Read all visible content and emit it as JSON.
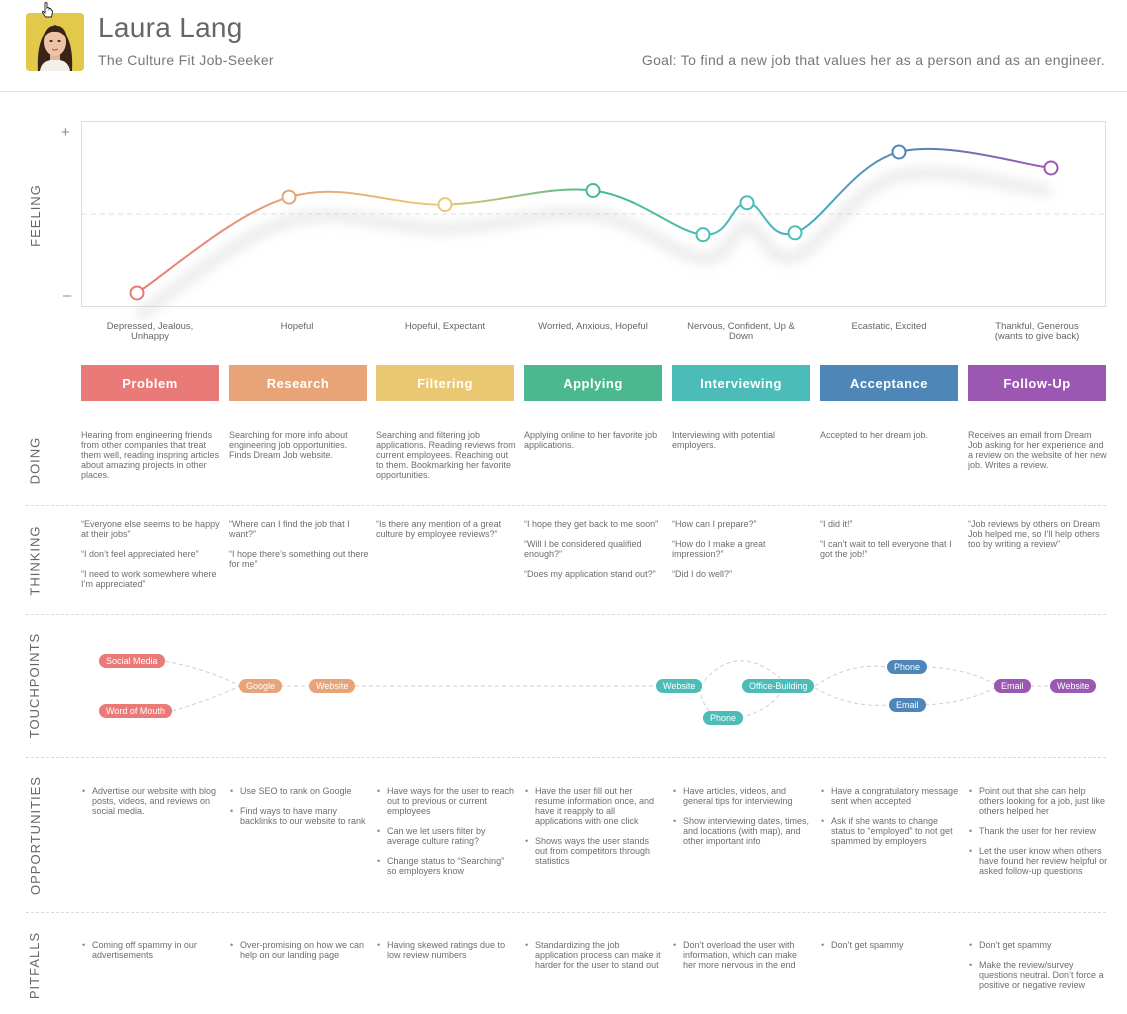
{
  "persona": {
    "name": "Laura Lang",
    "subtitle": "The Culture Fit Job-Seeker",
    "goal": "Goal: To find a new job that values her as a person and as an engineer."
  },
  "rows": {
    "feeling": "FEELING",
    "doing": "DOING",
    "thinking": "THINKING",
    "touchpoints": "TOUCHPOINTS",
    "opportunities": "OPPORTUNITIES",
    "pitfalls": "PITFALLS"
  },
  "chart_data": {
    "type": "line",
    "y_marks": {
      "top": "+",
      "bottom": "–"
    },
    "scale": "feeling from negative (–) to positive (+), midline = neutral",
    "ylim": [
      -1,
      1
    ],
    "points": [
      {
        "stage": "Problem",
        "value": -0.84
      },
      {
        "stage": "Research",
        "value": 0.18
      },
      {
        "stage": "Filtering",
        "value": 0.1
      },
      {
        "stage": "Applying",
        "value": 0.25
      },
      {
        "stage": "Interviewing",
        "value": -0.22
      },
      {
        "stage": "Interviewing",
        "value": 0.12
      },
      {
        "stage": "Interviewing",
        "value": -0.2
      },
      {
        "stage": "Acceptance",
        "value": 0.66
      },
      {
        "stage": "Follow-Up",
        "value": 0.49
      }
    ],
    "emotions": [
      "Depressed, Jealous,\nUnhappy",
      "Hopeful",
      "Hopeful, Expectant",
      "Worried, Anxious, Hopeful",
      "Nervous, Confident, Up &\nDown",
      "Ecastatic, Excited",
      "Thankful, Generous\n(wants to give back)"
    ]
  },
  "stages": [
    {
      "name": "Problem",
      "color": "#e97a78"
    },
    {
      "name": "Research",
      "color": "#e8a477"
    },
    {
      "name": "Filtering",
      "color": "#eac772"
    },
    {
      "name": "Applying",
      "color": "#4cb890"
    },
    {
      "name": "Interviewing",
      "color": "#4bbcb7"
    },
    {
      "name": "Acceptance",
      "color": "#4f86b8"
    },
    {
      "name": "Follow-Up",
      "color": "#9c57b3"
    }
  ],
  "doing": [
    "Hearing from engineering friends from other companies that treat them well, reading inspring articles about amazing projects in other places.",
    "Searching for more info about engineering job opportunities. Finds Dream Job website.",
    "Searching and filtering job applications. Reading reviews from current employees. Reaching out to them. Bookmarking her favorite opportunities.",
    "Applying online to her favorite job applications.",
    "Interviewing with potential employers.",
    "Accepted to her dream job.",
    "Receives an email from Dream Job asking for her experience and a review on the website of her new job. Writes a review."
  ],
  "thinking": [
    [
      "“Everyone else seems to be happy at their jobs”",
      "“I don’t feel appreciated here”",
      "“I need to work somewhere where I’m appreciated”"
    ],
    [
      "“Where can I find the job that I want?”",
      "“I hope there’s something out there for me”"
    ],
    [
      "“Is there any mention of a great culture by employee reviews?”"
    ],
    [
      "“I hope they get back to me soon”",
      "“Will I be considered qualified enough?”",
      "“Does my application stand out?”"
    ],
    [
      "“How can I prepare?”",
      "“How do I make a great impression?”",
      "“Did I do well?”"
    ],
    [
      "“I did it!”",
      "“I can’t wait to tell everyone that I got the job!”"
    ],
    [
      "“Job reviews by others on Dream Job helped me, so I’ll help others too by writing a review”"
    ]
  ],
  "touchpoints": {
    "social_media": "Social Media",
    "word_of_mouth": "Word of Mouth",
    "google": "Google",
    "website_research": "Website",
    "website_interview": "Website",
    "office_building": "Office-Building",
    "phone_interview": "Phone",
    "phone_acceptance": "Phone",
    "email_acceptance": "Email",
    "email_followup": "Email",
    "website_followup": "Website"
  },
  "opportunities": [
    [
      "Advertise our website with blog posts, videos, and reviews on social media."
    ],
    [
      "Use SEO to rank on Google",
      "Find ways to have many backlinks to our website to rank"
    ],
    [
      "Have ways for the user to reach out to previous or current employees",
      "Can we let users filter by average culture rating?",
      "Change status to “Searching” so employers know"
    ],
    [
      "Have the user fill out her resume information once, and have it reapply to all applications with one click",
      "Shows ways the user stands out from competitors through statistics"
    ],
    [
      "Have articles, videos, and general tips for interviewing",
      "Show interviewing dates, times, and locations (with map), and other important info"
    ],
    [
      "Have a congratulatory message sent when accepted",
      "Ask if she wants to change status to “employed” to not get spammed by employers"
    ],
    [
      "Point out that she can help others looking for a job, just like others helped her",
      "Thank the user for her review",
      "Let the user know when others have found her review helpful or asked follow-up questions"
    ]
  ],
  "pitfalls": [
    [
      "Coming off spammy in our advertisements"
    ],
    [
      "Over-promising on how we can help on our landing page"
    ],
    [
      "Having skewed ratings due to low review numbers"
    ],
    [
      "Standardizing the job application process can make it harder for the user to stand out"
    ],
    [
      "Don’t overload the user with information, which can make her more nervous in the end"
    ],
    [
      "Don’t get spammy"
    ],
    [
      "Don’t get spammy",
      "Make the review/survey questions neutral. Don’t force a positive or negative review"
    ]
  ]
}
